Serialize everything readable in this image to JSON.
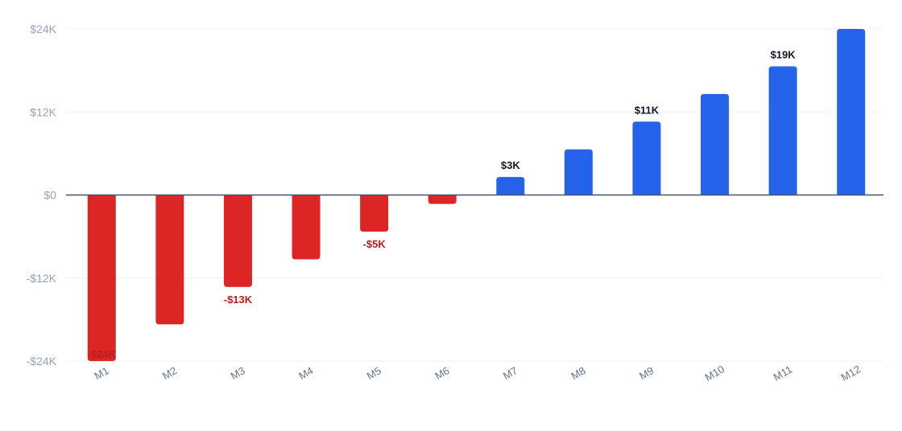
{
  "chart_data": {
    "type": "bar",
    "title": "",
    "xlabel": "",
    "ylabel": "",
    "categories": [
      "M1",
      "M2",
      "M3",
      "M4",
      "M5",
      "M6",
      "M7",
      "M8",
      "M9",
      "M10",
      "M11",
      "M12"
    ],
    "values": [
      -24000,
      -18700,
      -13300,
      -9300,
      -5300,
      -1300,
      2600,
      6600,
      10600,
      14600,
      18600,
      24000
    ],
    "ylim": [
      -24000,
      24000
    ],
    "yticks": [
      {
        "value": 24000,
        "label": "$24K"
      },
      {
        "value": 12000,
        "label": "$12K"
      },
      {
        "value": 0,
        "label": "$0"
      },
      {
        "value": -12000,
        "label": "-$12K"
      },
      {
        "value": -24000,
        "label": "-$24K"
      }
    ],
    "data_labels": [
      {
        "index": 0,
        "text": "-$24K"
      },
      {
        "index": 2,
        "text": "-$13K"
      },
      {
        "index": 4,
        "text": "-$5K"
      },
      {
        "index": 6,
        "text": "$3K"
      },
      {
        "index": 8,
        "text": "$11K"
      },
      {
        "index": 10,
        "text": "$19K"
      }
    ],
    "grid": true,
    "colors": {
      "positive": "#2563eb",
      "negative": "#dc2626",
      "positive_label": "#111827",
      "negative_label": "#b91c1c"
    }
  }
}
